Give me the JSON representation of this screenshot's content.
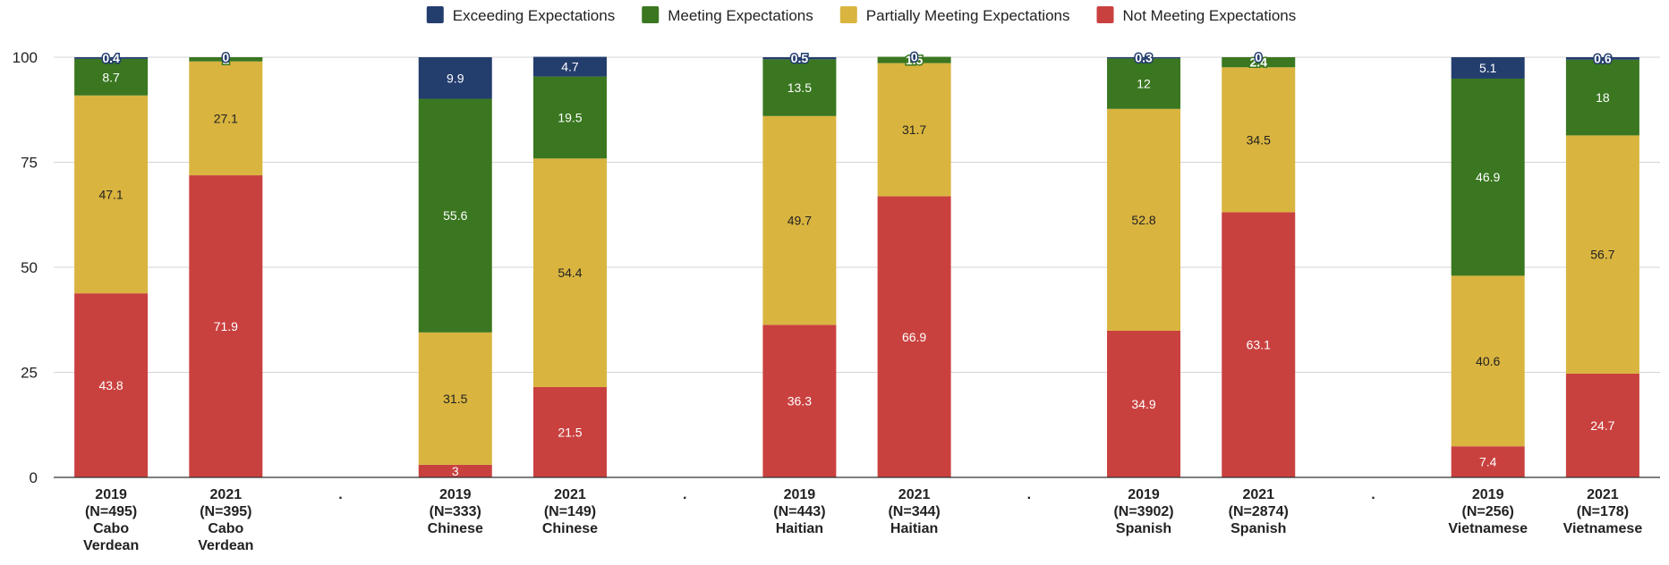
{
  "chart_data": {
    "type": "bar",
    "stacked": true,
    "title": "",
    "xlabel": "",
    "ylabel": "",
    "ylim": [
      0,
      100
    ],
    "yticks": [
      0,
      25,
      50,
      75,
      100
    ],
    "grid": true,
    "legend_position": "top",
    "categories": [
      [
        "2019",
        "(N=495)",
        "Cabo",
        "Verdean"
      ],
      [
        "2021",
        "(N=395)",
        "Cabo",
        "Verdean"
      ],
      [
        "."
      ],
      [
        "2019",
        "(N=333)",
        "Chinese"
      ],
      [
        "2021",
        "(N=149)",
        "Chinese"
      ],
      [
        "."
      ],
      [
        "2019",
        "(N=443)",
        "Haitian"
      ],
      [
        "2021",
        "(N=344)",
        "Haitian"
      ],
      [
        "."
      ],
      [
        "2019",
        "(N=3902)",
        "Spanish"
      ],
      [
        "2021",
        "(N=2874)",
        "Spanish"
      ],
      [
        "."
      ],
      [
        "2019",
        "(N=256)",
        "Vietnamese"
      ],
      [
        "2021",
        "(N=178)",
        "Vietnamese"
      ]
    ],
    "series": [
      {
        "name": "Not Meeting Expectations",
        "color": "#c9413f",
        "label_color": "#ffffff",
        "values": [
          43.8,
          71.9,
          null,
          3,
          21.5,
          null,
          36.3,
          66.9,
          null,
          34.9,
          63.1,
          null,
          7.4,
          24.7
        ]
      },
      {
        "name": "Partially Meeting Expectations",
        "color": "#d9b43f",
        "label_color": "#222222",
        "values": [
          47.1,
          27.1,
          null,
          31.5,
          54.4,
          null,
          49.7,
          31.7,
          null,
          52.8,
          34.5,
          null,
          40.6,
          56.7
        ]
      },
      {
        "name": "Meeting Expectations",
        "color": "#3a7720",
        "label_color": "#ffffff",
        "values": [
          8.7,
          1,
          null,
          55.6,
          19.5,
          null,
          13.5,
          1.5,
          null,
          12,
          2.4,
          null,
          46.9,
          18
        ]
      },
      {
        "name": "Exceeding Expectations",
        "color": "#233d6d",
        "label_color": "#ffffff",
        "values": [
          0.4,
          0,
          null,
          9.9,
          4.7,
          null,
          0.5,
          0,
          null,
          0.3,
          0,
          null,
          5.1,
          0.6
        ]
      }
    ],
    "legend_order": [
      3,
      2,
      1,
      0
    ]
  }
}
